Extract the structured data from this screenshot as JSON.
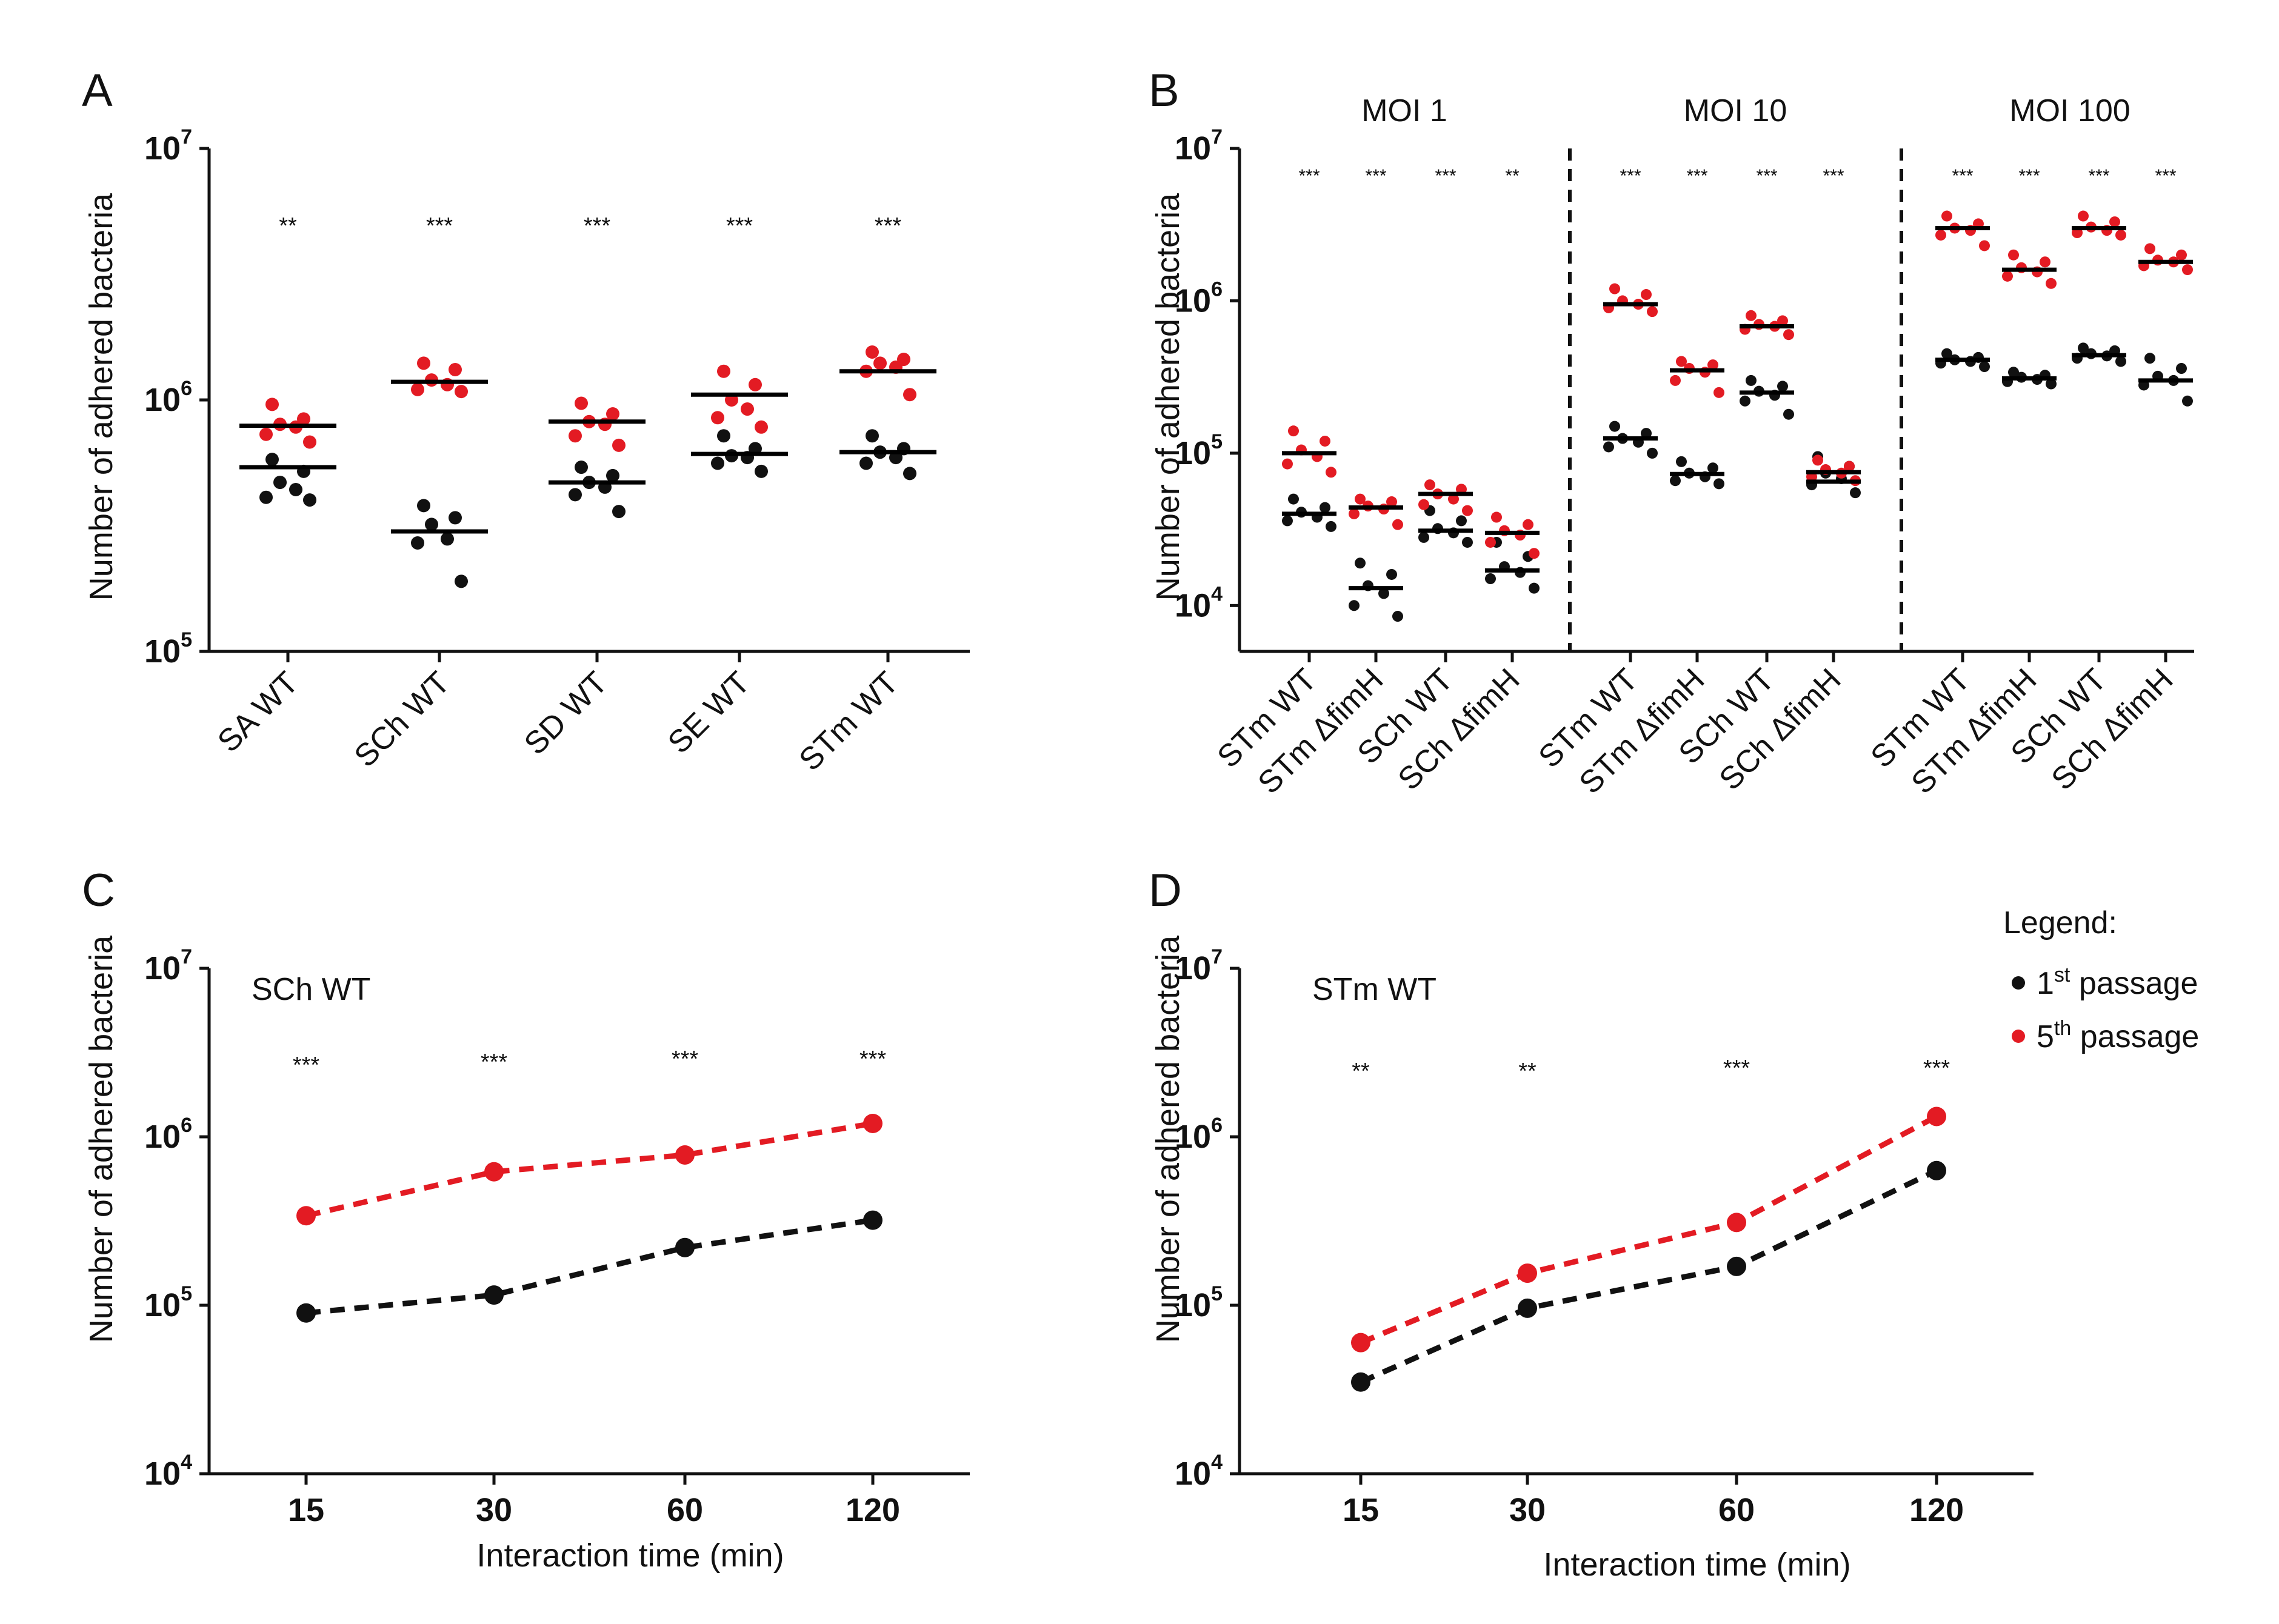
{
  "colors": {
    "p1": "#111111",
    "p5": "#e31b23"
  },
  "legend": {
    "title": "Legend:",
    "items": [
      {
        "ord": "1",
        "sup": "st",
        "label": "passage",
        "color": "#111111"
      },
      {
        "ord": "5",
        "sup": "th",
        "label": "passage",
        "color": "#e31b23"
      }
    ]
  },
  "chart_data": [
    {
      "panel": "A",
      "type": "scatter",
      "title": "",
      "ylabel": "Number of adhered bacteria",
      "yscale": "log",
      "ylim": [
        100000,
        10000000
      ],
      "yticks": [
        {
          "base": "10",
          "exp": "5",
          "v": 100000
        },
        {
          "base": "10",
          "exp": "6",
          "v": 1000000
        },
        {
          "base": "10",
          "exp": "7",
          "v": 10000000
        }
      ],
      "categories": [
        "SA WT",
        "SCh WT",
        "SD WT",
        "SE WT",
        "STm WT"
      ],
      "significance": [
        "**",
        "***",
        "***",
        "***",
        "***"
      ],
      "series": [
        {
          "name": "1st passage",
          "color_key": "p1",
          "means": [
            540000,
            300000,
            470000,
            610000,
            620000
          ],
          "points": [
            [
              580000,
              520000,
              470000,
              440000,
              410000,
              400000
            ],
            [
              380000,
              340000,
              320000,
              280000,
              270000,
              190000
            ],
            [
              540000,
              500000,
              470000,
              450000,
              420000,
              360000
            ],
            [
              720000,
              640000,
              600000,
              590000,
              560000,
              520000
            ],
            [
              720000,
              640000,
              620000,
              590000,
              560000,
              510000
            ]
          ]
        },
        {
          "name": "5th passage",
          "color_key": "p5",
          "means": [
            790000,
            1180000,
            820000,
            1050000,
            1300000
          ],
          "points": [
            [
              960000,
              840000,
              800000,
              780000,
              730000,
              680000
            ],
            [
              1400000,
              1320000,
              1200000,
              1150000,
              1100000,
              1080000
            ],
            [
              970000,
              880000,
              820000,
              800000,
              720000,
              660000
            ],
            [
              1300000,
              1150000,
              1000000,
              920000,
              850000,
              780000
            ],
            [
              1550000,
              1450000,
              1400000,
              1350000,
              1300000,
              1050000
            ]
          ]
        }
      ]
    },
    {
      "panel": "B",
      "type": "scatter",
      "ylabel": "Number of adhered bacteria",
      "yscale": "log",
      "ylim": [
        5000,
        10000000
      ],
      "yticks": [
        {
          "base": "10",
          "exp": "4",
          "v": 10000
        },
        {
          "base": "10",
          "exp": "5",
          "v": 100000
        },
        {
          "base": "10",
          "exp": "6",
          "v": 1000000
        },
        {
          "base": "10",
          "exp": "7",
          "v": 10000000
        }
      ],
      "groups": [
        "MOI 1",
        "MOI 10",
        "MOI 100"
      ],
      "categories": [
        "STm WT",
        "STm ΔfimH",
        "SCh WT",
        "SCh ΔfimH",
        "STm WT",
        "STm ΔfimH",
        "SCh WT",
        "SCh ΔfimH",
        "STm WT",
        "STm ΔfimH",
        "SCh WT",
        "SCh ΔfimH"
      ],
      "significance": [
        "***",
        "***",
        "***",
        "**",
        "***",
        "***",
        "***",
        "***",
        "***",
        "***",
        "***",
        "***"
      ],
      "series": [
        {
          "name": "1st passage",
          "color_key": "p1",
          "means": [
            40000,
            13000,
            31000,
            17000,
            125000,
            73000,
            250000,
            65000,
            410000,
            310000,
            440000,
            300000
          ],
          "points": [
            [
              50000,
              44000,
              41000,
              38000,
              36000,
              33000
            ],
            [
              19000,
              16000,
              13500,
              12000,
              10000,
              8500
            ],
            [
              42000,
              36000,
              32000,
              30000,
              28000,
              26000
            ],
            [
              26000,
              21000,
              18000,
              16500,
              15000,
              13000
            ],
            [
              150000,
              135000,
              125000,
              118000,
              110000,
              100000
            ],
            [
              88000,
              80000,
              74000,
              70000,
              66000,
              63000
            ],
            [
              300000,
              275000,
              255000,
              240000,
              220000,
              180000
            ],
            [
              95000,
              82000,
              74000,
              68000,
              62000,
              55000
            ],
            [
              450000,
              425000,
              410000,
              400000,
              390000,
              370000
            ],
            [
              340000,
              325000,
              315000,
              305000,
              295000,
              285000
            ],
            [
              490000,
              470000,
              450000,
              435000,
              420000,
              400000
            ],
            [
              420000,
              360000,
              320000,
              300000,
              280000,
              220000
            ]
          ]
        },
        {
          "name": "5th passage",
          "color_key": "p5",
          "means": [
            100000,
            44000,
            54000,
            30000,
            950000,
            350000,
            680000,
            75000,
            3000000,
            1600000,
            3000000,
            1800000
          ],
          "points": [
            [
              140000,
              120000,
              105000,
              95000,
              85000,
              75000
            ],
            [
              50000,
              48000,
              45000,
              43000,
              40000,
              34000
            ],
            [
              62000,
              58000,
              54000,
              50000,
              46000,
              42000
            ],
            [
              38000,
              34000,
              31000,
              29000,
              26000,
              22000
            ],
            [
              1200000,
              1100000,
              1000000,
              950000,
              900000,
              850000
            ],
            [
              400000,
              380000,
              360000,
              340000,
              300000,
              250000
            ],
            [
              800000,
              740000,
              700000,
              680000,
              650000,
              600000
            ],
            [
              90000,
              82000,
              78000,
              74000,
              70000,
              66000
            ],
            [
              3600000,
              3200000,
              3000000,
              2900000,
              2700000,
              2300000
            ],
            [
              2000000,
              1800000,
              1650000,
              1550000,
              1450000,
              1300000
            ],
            [
              3600000,
              3300000,
              3050000,
              2900000,
              2800000,
              2700000
            ],
            [
              2200000,
              2000000,
              1850000,
              1800000,
              1700000,
              1600000
            ]
          ]
        }
      ]
    },
    {
      "panel": "C",
      "type": "line",
      "title": "SCh WT",
      "xlabel": "Interaction time (min)",
      "ylabel": "Number of adhered bacteria",
      "yscale": "log",
      "ylim": [
        10000,
        10000000
      ],
      "yticks": [
        {
          "base": "10",
          "exp": "4",
          "v": 10000
        },
        {
          "base": "10",
          "exp": "5",
          "v": 100000
        },
        {
          "base": "10",
          "exp": "6",
          "v": 1000000
        },
        {
          "base": "10",
          "exp": "7",
          "v": 10000000
        }
      ],
      "categories": [
        "15",
        "30",
        "60",
        "120"
      ],
      "significance": [
        "***",
        "***",
        "***",
        "***"
      ],
      "series": [
        {
          "name": "1st passage",
          "color_key": "p1",
          "values": [
            90000,
            115000,
            220000,
            320000
          ]
        },
        {
          "name": "5th passage",
          "color_key": "p5",
          "values": [
            340000,
            620000,
            780000,
            1200000
          ]
        }
      ]
    },
    {
      "panel": "D",
      "type": "line",
      "title": "STm WT",
      "xlabel": "Interaction time (min)",
      "ylabel": "Number of adhered bacteria",
      "yscale": "log",
      "ylim": [
        10000,
        10000000
      ],
      "yticks": [
        {
          "base": "10",
          "exp": "4",
          "v": 10000
        },
        {
          "base": "10",
          "exp": "5",
          "v": 100000
        },
        {
          "base": "10",
          "exp": "6",
          "v": 1000000
        },
        {
          "base": "10",
          "exp": "7",
          "v": 10000000
        }
      ],
      "categories": [
        "15",
        "30",
        "60",
        "120"
      ],
      "significance": [
        "**",
        "**",
        "***",
        "***"
      ],
      "series": [
        {
          "name": "1st passage",
          "color_key": "p1",
          "values": [
            35000,
            96000,
            170000,
            630000
          ]
        },
        {
          "name": "5th passage",
          "color_key": "p5",
          "values": [
            60000,
            155000,
            310000,
            1320000
          ]
        }
      ]
    }
  ]
}
